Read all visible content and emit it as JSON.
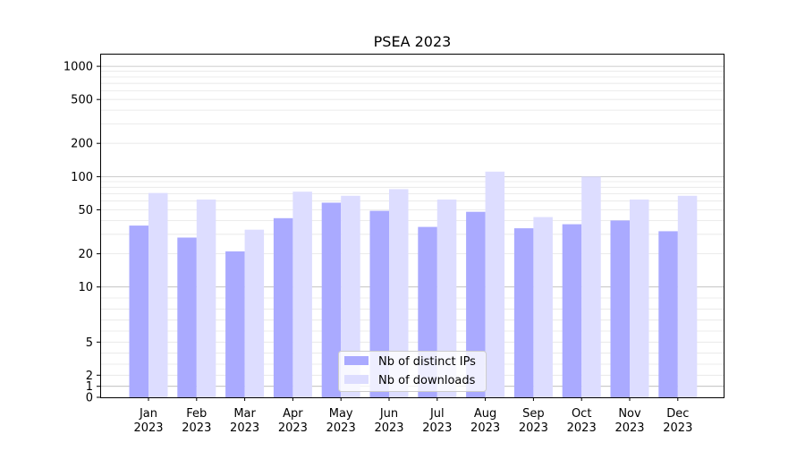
{
  "chart_data": {
    "type": "bar",
    "title": "PSEA 2023",
    "xlabel": "",
    "ylabel": "",
    "yscale": "symlog",
    "ylim": [
      0,
      1300
    ],
    "ytick_values": [
      0,
      1,
      2,
      5,
      10,
      20,
      50,
      100,
      200,
      500,
      1000
    ],
    "ytick_labels": [
      "0",
      "1",
      "2",
      "5",
      "10",
      "20",
      "50",
      "100",
      "200",
      "500",
      "1000"
    ],
    "grid": true,
    "legend_position": "bottom-center",
    "categories": [
      {
        "month": "Jan",
        "year": "2023"
      },
      {
        "month": "Feb",
        "year": "2023"
      },
      {
        "month": "Mar",
        "year": "2023"
      },
      {
        "month": "Apr",
        "year": "2023"
      },
      {
        "month": "May",
        "year": "2023"
      },
      {
        "month": "Jun",
        "year": "2023"
      },
      {
        "month": "Jul",
        "year": "2023"
      },
      {
        "month": "Aug",
        "year": "2023"
      },
      {
        "month": "Sep",
        "year": "2023"
      },
      {
        "month": "Oct",
        "year": "2023"
      },
      {
        "month": "Nov",
        "year": "2023"
      },
      {
        "month": "Dec",
        "year": "2023"
      }
    ],
    "series": [
      {
        "name": "Nb of distinct IPs",
        "color": "#aaaaff",
        "values": [
          36,
          28,
          21,
          42,
          58,
          49,
          35,
          48,
          34,
          37,
          40,
          32
        ]
      },
      {
        "name": "Nb of downloads",
        "color": "#ddddff",
        "values": [
          71,
          62,
          33,
          73,
          67,
          77,
          62,
          111,
          43,
          100,
          62,
          67
        ]
      }
    ]
  }
}
